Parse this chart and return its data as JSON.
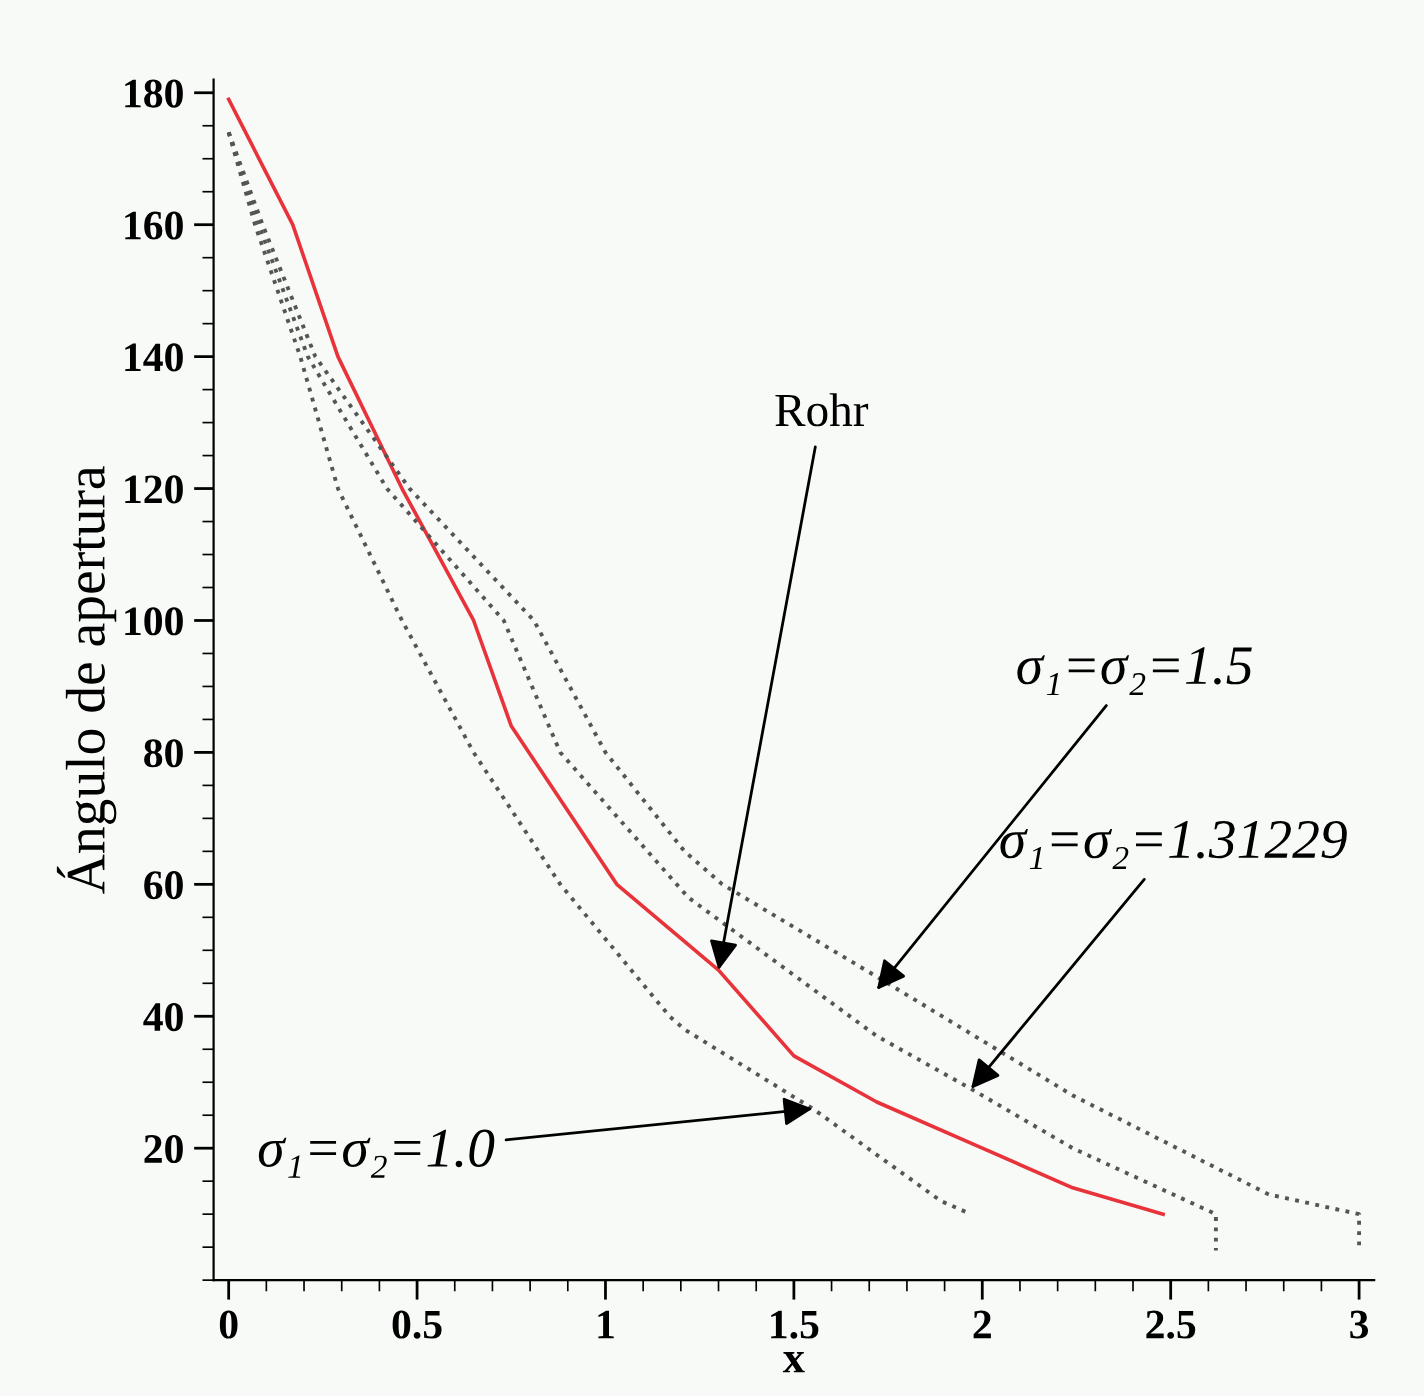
{
  "chart_data": {
    "type": "line",
    "xlabel": "x",
    "ylabel": "Ángulo de apertura",
    "xlim": [
      -0.04,
      3.04
    ],
    "xticks": [
      0,
      0.5,
      1,
      1.5,
      2,
      2.5,
      3
    ],
    "ylim": [
      0,
      182
    ],
    "yticks": [
      20,
      40,
      60,
      80,
      100,
      120,
      140,
      160,
      180
    ],
    "grid": false,
    "legend": false,
    "marker": "none",
    "series": [
      {
        "color": "#e8333a",
        "line_style": "solid",
        "x": [
          0,
          0.17,
          0.29,
          0.46,
          0.65,
          0.75,
          1.03,
          1.3,
          1.5,
          1.72,
          2.0,
          2.24,
          2.48
        ],
        "values": [
          179,
          160,
          140,
          120,
          100,
          84,
          60,
          47,
          34,
          27,
          20,
          14,
          10
        ]
      },
      {
        "color": "#555555",
        "line_style": "dotted",
        "x": [
          0,
          0.07,
          0.19,
          0.29,
          0.46,
          0.65,
          0.88,
          1.17,
          1.21,
          1.55,
          1.72,
          1.89,
          1.97
        ],
        "values": [
          174,
          160,
          140,
          120,
          100,
          80,
          60,
          40,
          38,
          26,
          19,
          12,
          10
        ]
      },
      {
        "color": "#555555",
        "line_style": "dotted",
        "x": [
          0,
          0.08,
          0.21,
          0.42,
          0.73,
          0.88,
          1.22,
          1.72,
          1.97,
          2.24,
          2.62,
          2.62
        ],
        "values": [
          174,
          160,
          140,
          120,
          100,
          80,
          58,
          37,
          29,
          20,
          10,
          4.5
        ]
      },
      {
        "color": "#555555",
        "line_style": "dotted",
        "x": [
          0,
          0.09,
          0.23,
          0.48,
          0.81,
          1.0,
          1.21,
          1.31,
          1.72,
          2.24,
          2.76,
          3.0,
          3.0
        ],
        "values": [
          174,
          160,
          140,
          120,
          100,
          80,
          65,
          60,
          46,
          28,
          13,
          10,
          4.5
        ]
      }
    ],
    "annotations": [
      {
        "text": "Rohr",
        "x": 1.3,
        "y": 47
      },
      {
        "text": "σ₁=σ₂=1.5",
        "x": 1.72,
        "y": 44
      },
      {
        "text": "σ₁=σ₂=1.31229",
        "x": 1.97,
        "y": 29
      },
      {
        "text": "σ₁=σ₂=1.0",
        "x": 1.55,
        "y": 26
      }
    ]
  }
}
